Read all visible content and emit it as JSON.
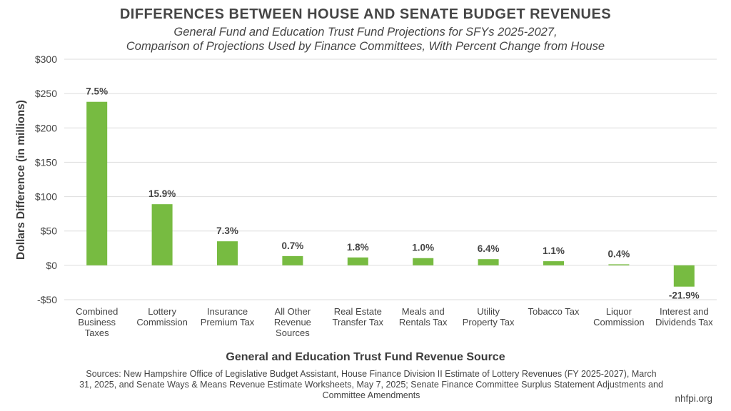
{
  "header": {
    "title": "DIFFERENCES BETWEEN HOUSE AND SENATE BUDGET REVENUES",
    "subtitle_line1": "General Fund and Education Trust Fund Projections for SFYs 2025-2027,",
    "subtitle_line2": "Comparison of Projections Used by Finance Committees, With Percent Change from House"
  },
  "footer": {
    "sources": "Sources: New Hampshire Office of Legislative Budget Assistant, House Finance Division II Estimate of Lottery Revenues (FY 2025-2027), March 31, 2025, and Senate Ways & Means Revenue Estimate Worksheets, May 7, 2025; Senate Finance Committee Surplus Statement Adjustments and Committee Amendments",
    "credit": "nhfpi.org"
  },
  "chart_data": {
    "type": "bar",
    "title": "DIFFERENCES BETWEEN HOUSE AND SENATE BUDGET REVENUES",
    "xlabel": "General and Education Trust Fund Revenue Source",
    "ylabel": "Dollars Difference (in millions)",
    "ylim": [
      -50,
      300
    ],
    "yticks": [
      -50,
      0,
      50,
      100,
      150,
      200,
      250,
      300
    ],
    "ytick_labels": [
      "-$50",
      "$0",
      "$50",
      "$100",
      "$150",
      "$200",
      "$250",
      "$300"
    ],
    "grid": true,
    "bar_color": "#77bb41",
    "categories": [
      [
        "Combined",
        "Business",
        "Taxes"
      ],
      [
        "Lottery",
        "Commission"
      ],
      [
        "Insurance",
        "Premium Tax"
      ],
      [
        "All Other",
        "Revenue",
        "Sources"
      ],
      [
        "Real Estate",
        "Transfer Tax"
      ],
      [
        "Meals and",
        "Rentals Tax"
      ],
      [
        "Utility",
        "Property Tax"
      ],
      [
        "Tobacco Tax"
      ],
      [
        "Liquor",
        "Commission"
      ],
      [
        "Interest and",
        "Dividends Tax"
      ]
    ],
    "values": [
      238,
      89,
      35,
      13.5,
      11.5,
      10.5,
      9,
      6,
      1.5,
      -31
    ],
    "data_labels": [
      "7.5%",
      "15.9%",
      "7.3%",
      "0.7%",
      "1.8%",
      "1.0%",
      "6.4%",
      "1.1%",
      "0.4%",
      "-21.9%"
    ]
  }
}
